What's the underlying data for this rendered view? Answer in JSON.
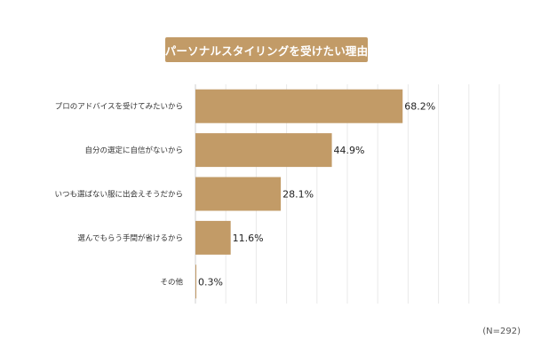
{
  "note": "(N=292)",
  "colors": {
    "bar": "#c29b67",
    "title_bg": "#c29b67",
    "grid": "#e9e9e9",
    "axis": "#cfcfcf",
    "category_text": "#333333",
    "value_text": "#222222"
  },
  "chart_data": {
    "type": "bar",
    "orientation": "horizontal",
    "title": "パーソナルスタイリングを受けたい理由",
    "categories": [
      "プロのアドバイスを受けてみたいから",
      "自分の選定に自信がないから",
      "いつも選ばない服に出会えそうだから",
      "選んでもらう手間が省けるから",
      "その他"
    ],
    "values": [
      68.2,
      44.9,
      28.1,
      11.6,
      0.3
    ],
    "value_labels": [
      "68.2%",
      "44.9%",
      "28.1%",
      "11.6%",
      "0.3%"
    ],
    "unit": "%",
    "xlim": [
      0,
      100
    ],
    "grid": true
  }
}
